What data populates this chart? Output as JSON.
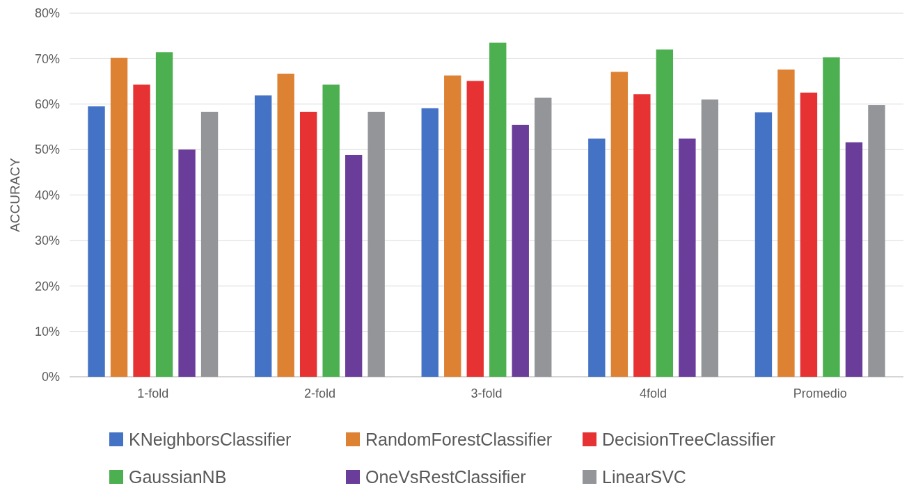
{
  "chart_data": {
    "type": "bar",
    "ylabel": "ACCURACY",
    "categories": [
      "1-fold",
      "2-fold",
      "3-fold",
      "4fold",
      "Promedio"
    ],
    "series": [
      {
        "name": "KNeighborsClassifier",
        "color": "#4472c4",
        "values": [
          59.5,
          61.9,
          59.1,
          52.4,
          58.2
        ]
      },
      {
        "name": "RandomForestClassifier",
        "color": "#dd8133",
        "values": [
          70.2,
          66.7,
          66.3,
          67.1,
          67.6
        ]
      },
      {
        "name": "DecisionTreeClassifier",
        "color": "#e63232",
        "values": [
          64.3,
          58.3,
          65.1,
          62.2,
          62.5
        ]
      },
      {
        "name": "GaussianNB",
        "color": "#4caf50",
        "values": [
          71.4,
          64.3,
          73.5,
          72.0,
          70.3
        ]
      },
      {
        "name": "OneVsRestClassifier",
        "color": "#6a3d9a",
        "values": [
          50.0,
          48.8,
          55.4,
          52.4,
          51.6
        ]
      },
      {
        "name": "LinearSVC",
        "color": "#939598",
        "values": [
          58.3,
          58.3,
          61.4,
          61.0,
          59.8
        ]
      }
    ],
    "ylim": [
      0,
      80
    ],
    "yticks": [
      {
        "value": 0,
        "label": "0%"
      },
      {
        "value": 10,
        "label": "10%"
      },
      {
        "value": 20,
        "label": "20%"
      },
      {
        "value": 30,
        "label": "30%"
      },
      {
        "value": 40,
        "label": "40%"
      },
      {
        "value": 50,
        "label": "50%"
      },
      {
        "value": 60,
        "label": "60%"
      },
      {
        "value": 70,
        "label": "70%"
      },
      {
        "value": 80,
        "label": "80%"
      }
    ],
    "grid": "y",
    "legend": "bottom"
  }
}
